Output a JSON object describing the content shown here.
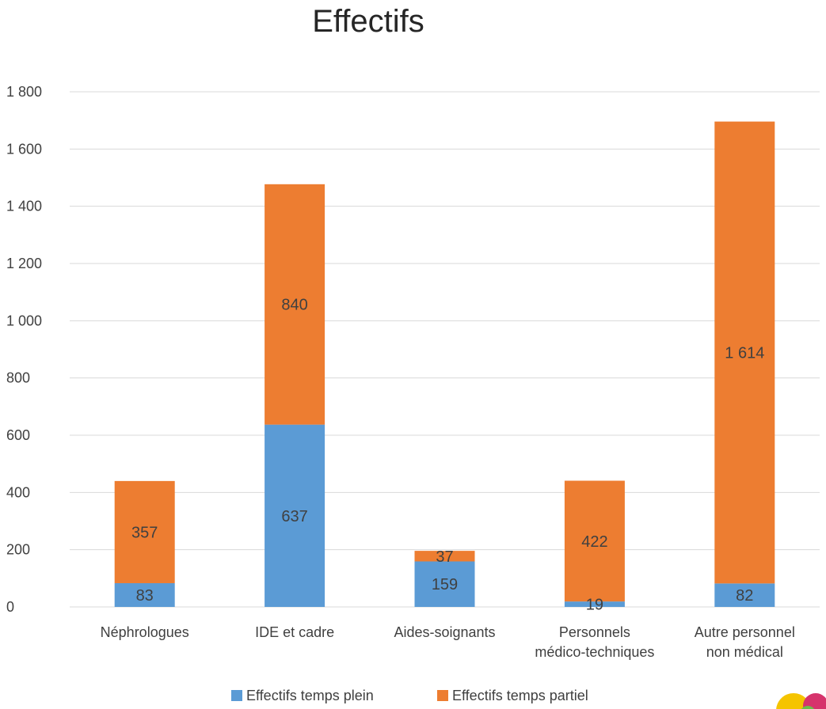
{
  "chart_data": {
    "type": "bar",
    "stacked": true,
    "title": "Effectifs",
    "xlabel": "",
    "ylabel": "",
    "categories": [
      [
        "Néphrologues"
      ],
      [
        "IDE et cadre"
      ],
      [
        "Aides-soignants"
      ],
      [
        "Personnels",
        "médico-techniques"
      ],
      [
        "Autre personnel",
        "non médical"
      ]
    ],
    "series": [
      {
        "name": "Effectifs temps plein",
        "color": "#5b9bd5",
        "values": [
          83,
          637,
          159,
          19,
          82
        ],
        "labels": [
          "83",
          "637",
          "159",
          "19",
          "82"
        ]
      },
      {
        "name": "Effectifs temps partiel",
        "color": "#ed7d31",
        "values": [
          357,
          840,
          37,
          422,
          1614
        ],
        "labels": [
          "357",
          "840",
          "37",
          "422",
          "1 614"
        ]
      }
    ],
    "ylim": [
      0,
      1800
    ],
    "yticks": [
      0,
      200,
      400,
      600,
      800,
      1000,
      1200,
      1400,
      1600,
      1800
    ],
    "ytick_labels": [
      "0",
      "200",
      "400",
      "600",
      "800",
      "1 000",
      "1 200",
      "1 400",
      "1 600",
      "1 800"
    ],
    "grid": true,
    "legend_position": "bottom"
  }
}
